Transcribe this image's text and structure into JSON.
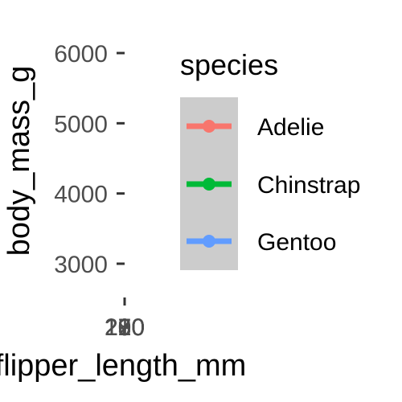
{
  "chart_data": {
    "type": "scatter",
    "title": "",
    "xlabel": "flipper_length_mm",
    "ylabel": "body_mass_g",
    "y_ticks": [
      3000,
      4000,
      5000,
      6000
    ],
    "x_tick_labels": [
      "170",
      "180",
      "190",
      "200",
      "210",
      "220",
      "230"
    ],
    "grid": false,
    "legend": {
      "title": "species",
      "placement": "right",
      "items": [
        {
          "label": "Adelie",
          "color": "#F8766D"
        },
        {
          "label": "Chinstrap",
          "color": "#00BA38"
        },
        {
          "label": "Gentoo",
          "color": "#619CFF"
        }
      ]
    },
    "legend_key_background": "#cccccc"
  }
}
